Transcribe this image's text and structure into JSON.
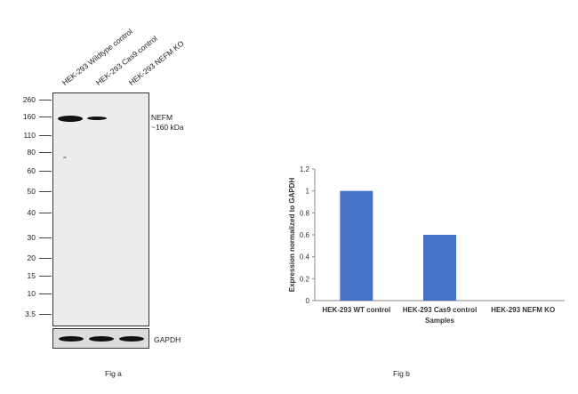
{
  "blot": {
    "lanes": [
      "HEK-293 Wildtype control",
      "HEK-293 Cas9 control",
      "HEK-293 NEFM KO"
    ],
    "mw_markers": [
      "260",
      "160",
      "110",
      "80",
      "60",
      "50",
      "40",
      "30",
      "20",
      "15",
      "10",
      "3.5"
    ],
    "target_label": "NEFM",
    "target_size": "~160 kDa",
    "loading_control": "GAPDH",
    "caption": "Fig a"
  },
  "chart_data": {
    "type": "bar",
    "categories": [
      "HEK-293 WT control",
      "HEK-293 Cas9 control",
      "HEK-293 NEFM KO"
    ],
    "values": [
      1.0,
      0.6,
      0.0
    ],
    "xlabel": "Samples",
    "ylabel": "Expression normalized to GAPDH",
    "ylim": [
      0,
      1.2
    ],
    "yticks": [
      "0",
      "0.2",
      "0.4",
      "0.6",
      "0.8",
      "1",
      "1.2"
    ],
    "bar_color": "#4472c4",
    "grid": false,
    "legend": "none"
  },
  "chart_caption": "Fig b"
}
